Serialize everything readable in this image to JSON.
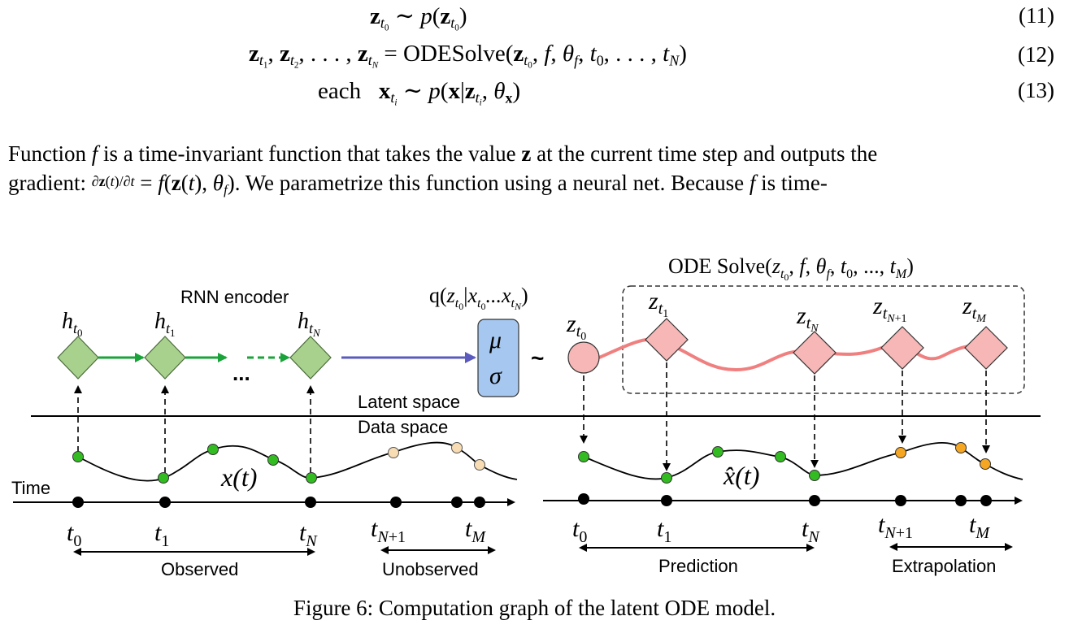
{
  "equations": [
    {
      "number": "(11)"
    },
    {
      "number": "(12)",
      "solver": "ODESolve"
    },
    {
      "number": "(13)",
      "prefix": "each"
    }
  ],
  "paragraph": {
    "line1_start": "Function",
    "line1_mid": "is a time-invariant function that takes the value",
    "line1_end": "at the current time step and outputs the",
    "line2_start": "gradient:",
    "line2_mid": ". We parametrize this function using a neural net. Because",
    "line2_end": "is time-"
  },
  "figure": {
    "ode_solve_label": "ODE Solve",
    "ode_solve_args": "(z_{t0}, f, θ_f, t_0, ..., t_M)",
    "rnn_encoder_label": "RNN encoder",
    "posterior_label": "q(z_{t0} | x_{t0} ... x_{tN})",
    "mu": "μ",
    "sigma": "σ",
    "tilde": "~",
    "dots": "...",
    "latent_space_label": "Latent space",
    "data_space_label": "Data space",
    "time_label": "Time",
    "observed_label": "Observed",
    "unobserved_label": "Unobserved",
    "prediction_label": "Prediction",
    "extrapolation_label": "Extrapolation",
    "x_label": "x(t)",
    "xhat_label": "x̂(t)",
    "colors": {
      "encoder_node": "#a9d18e",
      "encoder_arrow": "#1aa33a",
      "to_q_arrow": "#5b5bbf",
      "mu_sigma_box": "#a6c8f0",
      "latent_node": "#f7b7b7",
      "latent_curve": "#f08080",
      "obs_point": "#33bb22",
      "unobs_point": "#f7dcb4",
      "extrap_point": "#f5a623"
    }
  },
  "caption": "Figure 6: Computation graph of the latent ODE model."
}
